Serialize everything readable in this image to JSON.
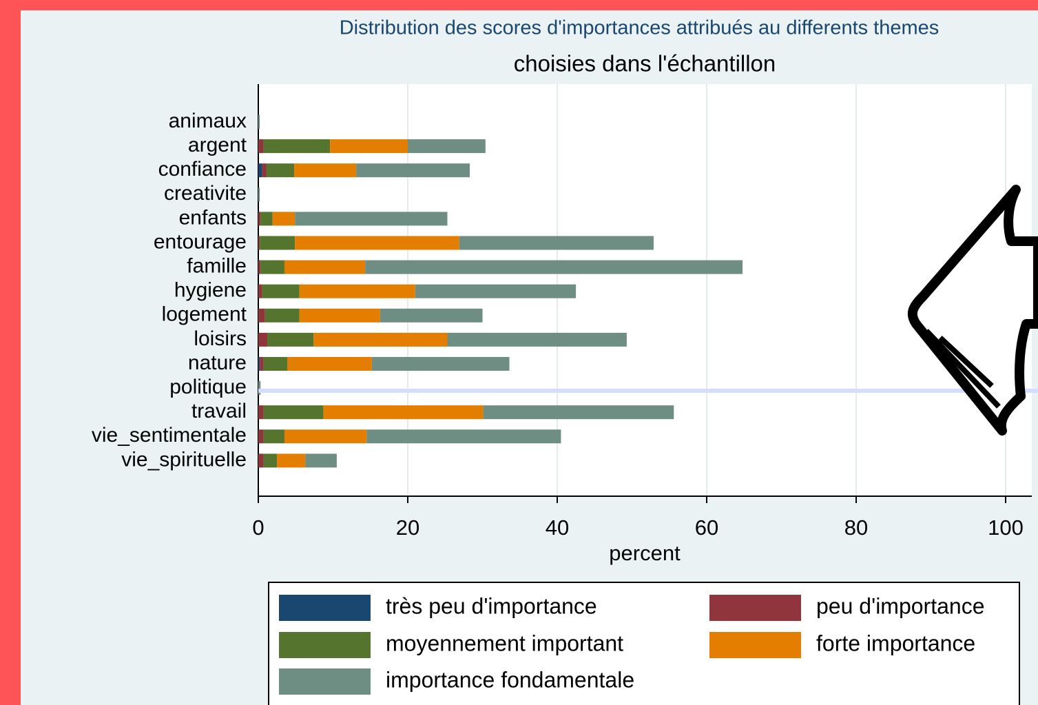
{
  "chart_data": {
    "type": "bar",
    "orientation": "horizontal",
    "stacked": true,
    "title": "Distribution des scores d'importances attribués au differents themes",
    "subtitle": "choisies dans l'échantillon",
    "x_label": "percent",
    "categories": [
      "animaux",
      "argent",
      "confiance",
      "creativite",
      "enfants",
      "entourage",
      "famille",
      "hygiene",
      "logement",
      "loisirs",
      "nature",
      "politique",
      "travail",
      "vie_sentimentale",
      "vie_spirituelle"
    ],
    "series": [
      {
        "name": "très peu d'importance",
        "color": "#1a476f",
        "values": [
          0,
          0,
          0.5,
          0,
          0,
          0,
          0,
          0,
          0,
          0,
          0.2,
          0,
          0,
          0,
          0
        ]
      },
      {
        "name": "peu d'importance",
        "color": "#90353b",
        "values": [
          0,
          0.7,
          0.6,
          0,
          0.3,
          0.2,
          0.3,
          0.5,
          0.9,
          1.2,
          0.5,
          0,
          0.7,
          0.7,
          0.7
        ]
      },
      {
        "name": "moyennement important",
        "color": "#55752f",
        "values": [
          0,
          8.9,
          3.7,
          0,
          1.6,
          4.7,
          3.2,
          5.0,
          4.6,
          6.2,
          3.2,
          0,
          8.0,
          2.8,
          1.8
        ]
      },
      {
        "name": "forte importance",
        "color": "#e37e00",
        "values": [
          0,
          10.4,
          8.3,
          0,
          3.0,
          22.0,
          10.8,
          15.5,
          10.8,
          17.9,
          11.3,
          0,
          21.4,
          11.0,
          3.8
        ]
      },
      {
        "name": "importance fondamentale",
        "color": "#6e8e84",
        "values": [
          0.2,
          10.4,
          15.2,
          0.2,
          20.4,
          26.0,
          50.5,
          21.5,
          13.7,
          24.0,
          18.4,
          0.3,
          25.5,
          26.0,
          4.2
        ]
      }
    ],
    "xlim": [
      0,
      100
    ],
    "xticks": [
      0,
      20,
      40,
      60,
      80,
      100
    ],
    "grid": true,
    "legend": "bottom"
  }
}
